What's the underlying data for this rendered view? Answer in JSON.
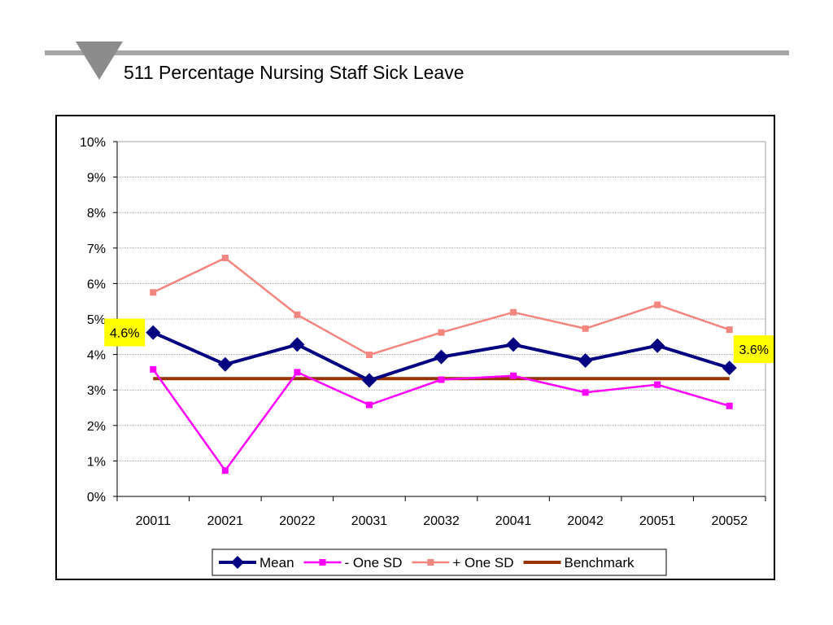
{
  "header": {
    "title": "511 Percentage Nursing Staff Sick Leave"
  },
  "chart_data": {
    "type": "line",
    "title": "511 Percentage Nursing Staff Sick Leave",
    "xlabel": "",
    "ylabel": "",
    "categories": [
      "20011",
      "20021",
      "20022",
      "20031",
      "20032",
      "20041",
      "20042",
      "20051",
      "20052"
    ],
    "ylim": [
      0,
      10
    ],
    "yticks": [
      "0%",
      "1%",
      "2%",
      "3%",
      "4%",
      "5%",
      "6%",
      "7%",
      "8%",
      "9%",
      "10%"
    ],
    "grid": true,
    "legend_position": "bottom",
    "series": [
      {
        "name": "Mean",
        "values": [
          4.62,
          3.72,
          4.28,
          3.27,
          3.93,
          4.28,
          3.83,
          4.25,
          3.62
        ],
        "color": "#000080",
        "marker": "diamond"
      },
      {
        "name": "- One SD",
        "values": [
          3.58,
          0.73,
          3.5,
          2.58,
          3.29,
          3.4,
          2.93,
          3.15,
          2.55
        ],
        "color": "#ff00ff",
        "marker": "square"
      },
      {
        "name": "+ One SD",
        "values": [
          5.75,
          6.72,
          5.12,
          3.99,
          4.62,
          5.19,
          4.73,
          5.4,
          4.7
        ],
        "color": "#f4857f",
        "marker": "square"
      },
      {
        "name": "Benchmark",
        "values": [
          3.32,
          3.32,
          3.32,
          3.32,
          3.32,
          3.32,
          3.32,
          3.32,
          3.32
        ],
        "color": "#993300",
        "marker": "none"
      }
    ],
    "annotations": [
      {
        "text": "4.6%",
        "category": "20011",
        "value": 4.62,
        "background": "#ffff00"
      },
      {
        "text": "3.6%",
        "category": "20052",
        "value": 3.62,
        "background": "#ffff00"
      }
    ]
  }
}
